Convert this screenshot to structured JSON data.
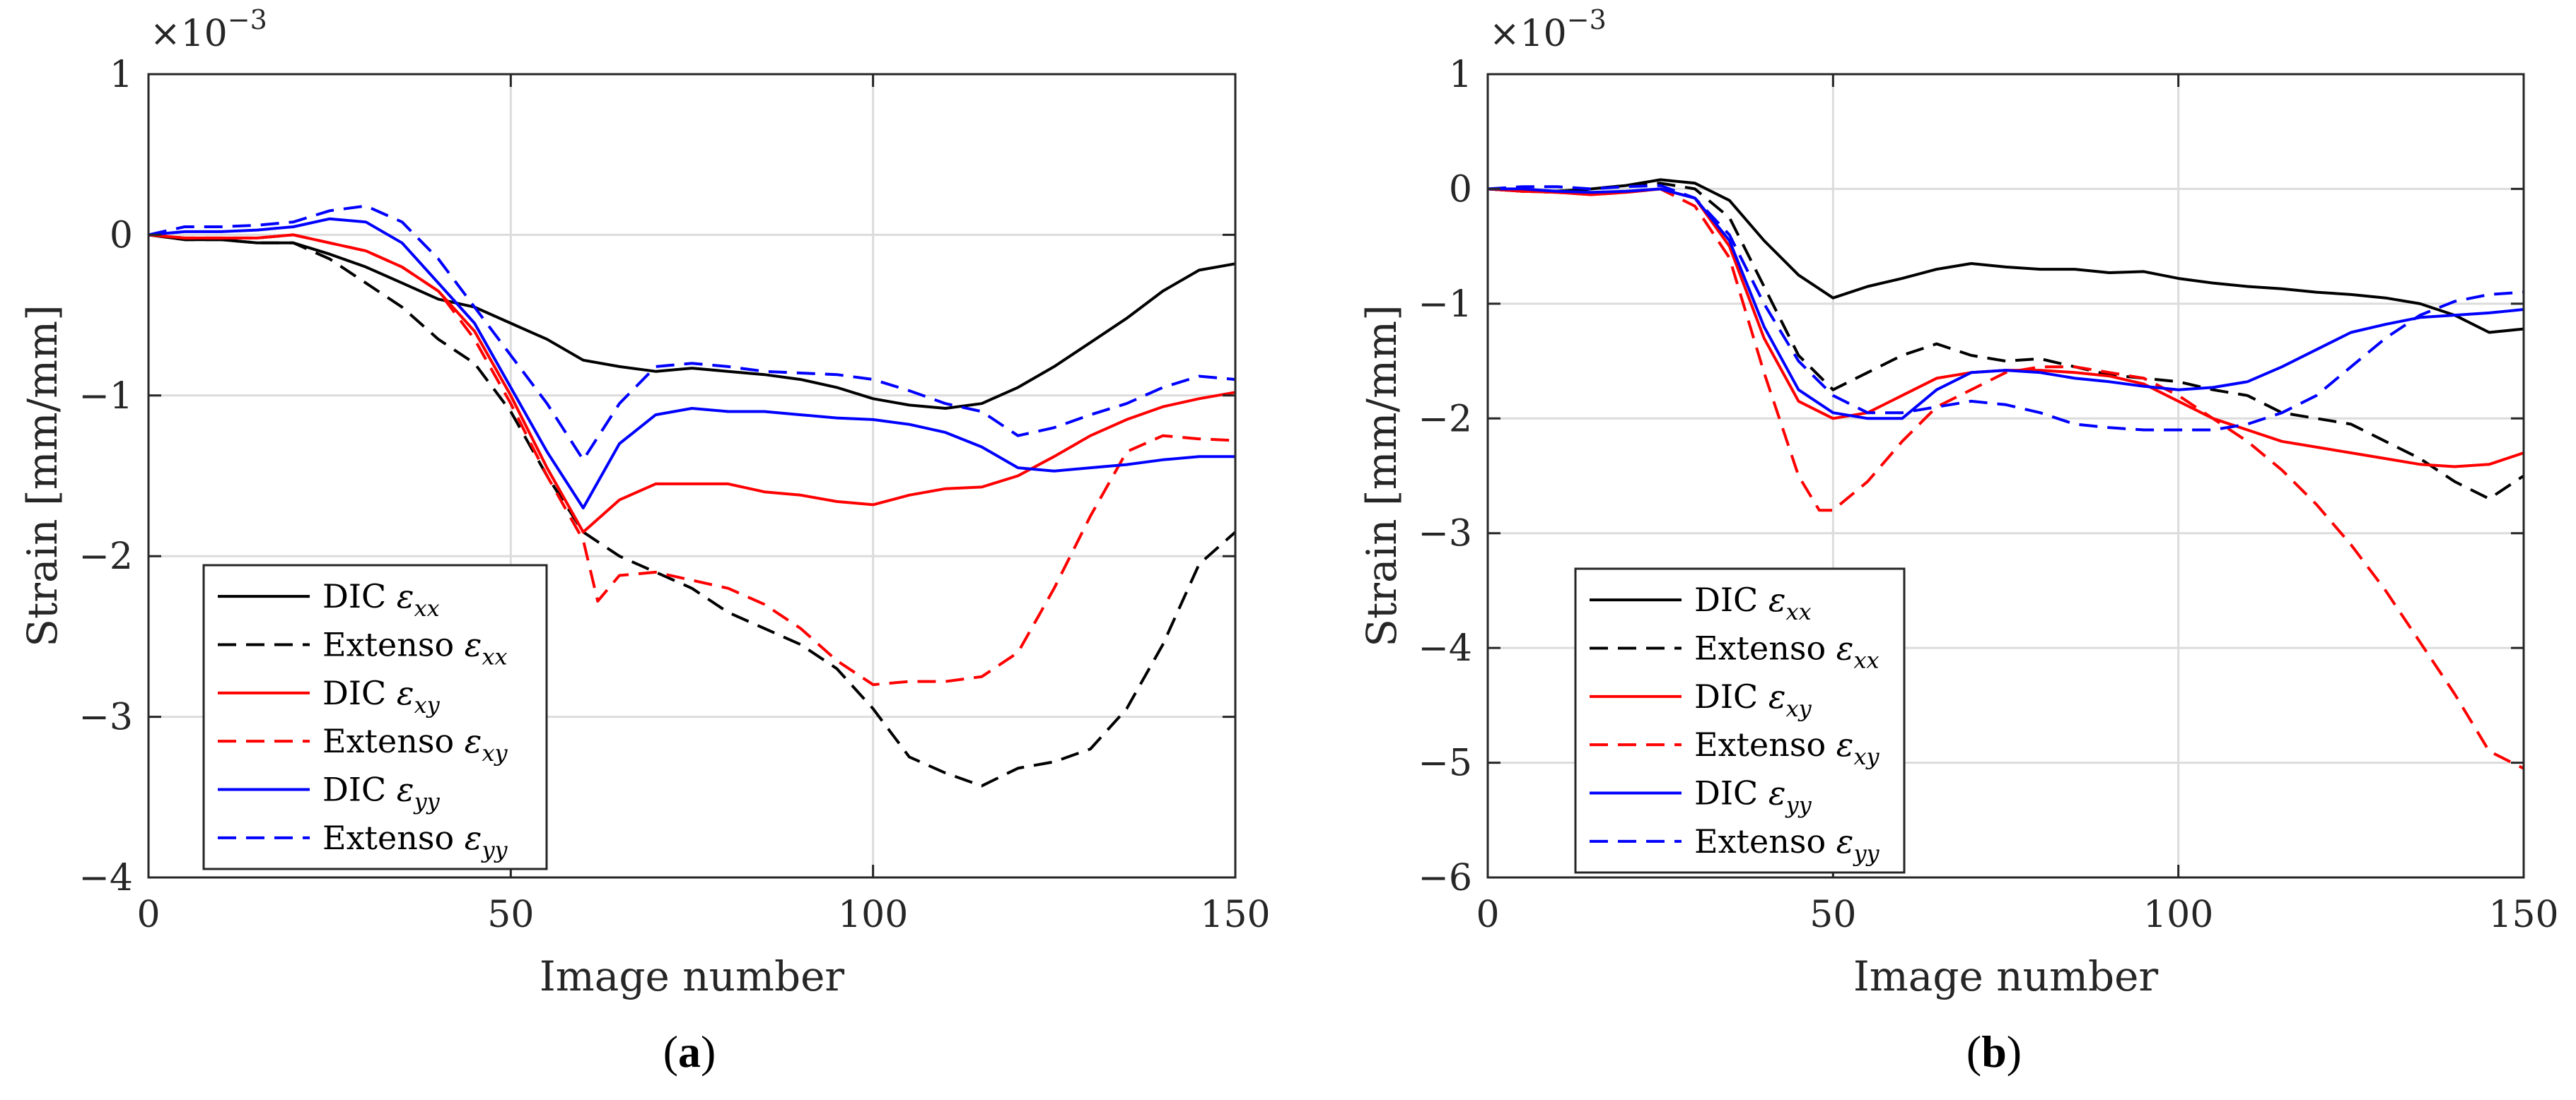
{
  "chart_data": [
    {
      "type": "line",
      "panel_label": "(a)",
      "xlabel": "Image number",
      "ylabel": "Strain [mm/mm]",
      "multiplier": "×10",
      "multiplier_exp": "−3",
      "xlim": [
        0,
        150
      ],
      "ylim": [
        -4,
        1
      ],
      "xticks": [
        0,
        50,
        100,
        150
      ],
      "yticks": [
        1,
        0,
        -1,
        -2,
        -3,
        -4
      ],
      "xtick_labels": [
        "0",
        "50",
        "100",
        "150"
      ],
      "ytick_labels": [
        "1",
        "0",
        "−1",
        "−2",
        "−3",
        "−4"
      ],
      "grid": true,
      "legend": "bottom-left",
      "series": [
        {
          "name": "DIC ε_xx",
          "label": "DIC",
          "sub": "xx",
          "color": "#000000",
          "dash": "solid",
          "x": [
            0,
            5,
            10,
            15,
            20,
            25,
            30,
            35,
            40,
            45,
            50,
            55,
            60,
            65,
            70,
            75,
            80,
            85,
            90,
            95,
            100,
            105,
            110,
            115,
            120,
            125,
            130,
            135,
            140,
            145,
            150
          ],
          "y": [
            0,
            -0.03,
            -0.03,
            -0.05,
            -0.05,
            -0.12,
            -0.2,
            -0.3,
            -0.4,
            -0.45,
            -0.55,
            -0.65,
            -0.78,
            -0.82,
            -0.85,
            -0.83,
            -0.85,
            -0.87,
            -0.9,
            -0.95,
            -1.02,
            -1.06,
            -1.08,
            -1.05,
            -0.95,
            -0.82,
            -0.67,
            -0.52,
            -0.35,
            -0.22,
            -0.18
          ]
        },
        {
          "name": "Extenso ε_xx",
          "label": "Extenso",
          "sub": "xx",
          "color": "#000000",
          "dash": "dashed",
          "x": [
            0,
            5,
            10,
            15,
            20,
            25,
            30,
            35,
            40,
            45,
            50,
            55,
            60,
            65,
            70,
            75,
            80,
            85,
            90,
            95,
            100,
            105,
            110,
            115,
            120,
            125,
            130,
            135,
            140,
            145,
            150
          ],
          "y": [
            0,
            -0.03,
            -0.03,
            -0.05,
            -0.05,
            -0.15,
            -0.3,
            -0.45,
            -0.65,
            -0.8,
            -1.1,
            -1.5,
            -1.85,
            -2.0,
            -2.1,
            -2.2,
            -2.35,
            -2.45,
            -2.55,
            -2.7,
            -2.95,
            -3.25,
            -3.35,
            -3.43,
            -3.32,
            -3.28,
            -3.2,
            -2.95,
            -2.55,
            -2.05,
            -1.85
          ]
        },
        {
          "name": "DIC ε_xy",
          "label": "DIC",
          "sub": "xy",
          "color": "#ff0000",
          "dash": "solid",
          "x": [
            0,
            5,
            10,
            15,
            20,
            25,
            30,
            35,
            40,
            45,
            50,
            55,
            60,
            65,
            70,
            75,
            80,
            85,
            90,
            95,
            100,
            105,
            110,
            115,
            120,
            125,
            130,
            135,
            140,
            145,
            150
          ],
          "y": [
            0,
            -0.02,
            -0.02,
            -0.02,
            0,
            -0.05,
            -0.1,
            -0.2,
            -0.35,
            -0.6,
            -1.0,
            -1.45,
            -1.85,
            -1.65,
            -1.55,
            -1.55,
            -1.55,
            -1.6,
            -1.62,
            -1.66,
            -1.68,
            -1.62,
            -1.58,
            -1.57,
            -1.5,
            -1.38,
            -1.25,
            -1.15,
            -1.07,
            -1.02,
            -0.98
          ]
        },
        {
          "name": "Extenso ε_xy",
          "label": "Extenso",
          "sub": "xy",
          "color": "#ff0000",
          "dash": "dashed",
          "x": [
            0,
            5,
            10,
            15,
            20,
            25,
            30,
            35,
            40,
            45,
            50,
            55,
            60,
            62,
            65,
            70,
            75,
            80,
            85,
            90,
            95,
            100,
            105,
            110,
            115,
            120,
            125,
            130,
            135,
            140,
            145,
            150
          ],
          "y": [
            0,
            -0.02,
            -0.02,
            -0.02,
            0,
            -0.05,
            -0.1,
            -0.2,
            -0.35,
            -0.65,
            -1.05,
            -1.5,
            -1.9,
            -2.28,
            -2.12,
            -2.1,
            -2.15,
            -2.2,
            -2.3,
            -2.45,
            -2.65,
            -2.8,
            -2.78,
            -2.78,
            -2.75,
            -2.6,
            -2.2,
            -1.75,
            -1.35,
            -1.25,
            -1.27,
            -1.28
          ]
        },
        {
          "name": "DIC ε_yy",
          "label": "DIC",
          "sub": "yy",
          "color": "#0000ff",
          "dash": "solid",
          "x": [
            0,
            5,
            10,
            15,
            20,
            25,
            30,
            35,
            40,
            45,
            50,
            55,
            60,
            65,
            70,
            75,
            80,
            85,
            90,
            95,
            100,
            105,
            110,
            115,
            120,
            125,
            130,
            135,
            140,
            145,
            150
          ],
          "y": [
            0,
            0.02,
            0.02,
            0.03,
            0.05,
            0.1,
            0.08,
            -0.05,
            -0.3,
            -0.55,
            -0.95,
            -1.35,
            -1.7,
            -1.3,
            -1.12,
            -1.08,
            -1.1,
            -1.1,
            -1.12,
            -1.14,
            -1.15,
            -1.18,
            -1.23,
            -1.32,
            -1.45,
            -1.47,
            -1.45,
            -1.43,
            -1.4,
            -1.38,
            -1.38
          ]
        },
        {
          "name": "Extenso ε_yy",
          "label": "Extenso",
          "sub": "yy",
          "color": "#0000ff",
          "dash": "dashed",
          "x": [
            0,
            5,
            10,
            15,
            20,
            25,
            30,
            35,
            40,
            45,
            50,
            55,
            60,
            65,
            70,
            75,
            80,
            85,
            90,
            95,
            100,
            105,
            110,
            115,
            120,
            125,
            130,
            135,
            140,
            145,
            150
          ],
          "y": [
            0,
            0.05,
            0.05,
            0.06,
            0.08,
            0.15,
            0.18,
            0.08,
            -0.15,
            -0.45,
            -0.75,
            -1.05,
            -1.4,
            -1.05,
            -0.82,
            -0.8,
            -0.82,
            -0.85,
            -0.86,
            -0.87,
            -0.9,
            -0.97,
            -1.05,
            -1.1,
            -1.25,
            -1.2,
            -1.12,
            -1.05,
            -0.95,
            -0.88,
            -0.9
          ]
        }
      ]
    },
    {
      "type": "line",
      "panel_label": "(b)",
      "xlabel": "Image number",
      "ylabel": "Strain [mm/mm]",
      "multiplier": "×10",
      "multiplier_exp": "−3",
      "xlim": [
        0,
        150
      ],
      "ylim": [
        -6,
        1
      ],
      "xticks": [
        0,
        50,
        100,
        150
      ],
      "yticks": [
        1,
        0,
        -1,
        -2,
        -3,
        -4,
        -5,
        -6
      ],
      "xtick_labels": [
        "0",
        "50",
        "100",
        "150"
      ],
      "ytick_labels": [
        "1",
        "0",
        "−1",
        "−2",
        "−3",
        "−4",
        "−5",
        "−6"
      ],
      "grid": true,
      "legend": "bottom-left",
      "series": [
        {
          "name": "DIC ε_xx",
          "label": "DIC",
          "sub": "xx",
          "color": "#000000",
          "dash": "solid",
          "x": [
            0,
            5,
            10,
            15,
            20,
            25,
            30,
            35,
            40,
            45,
            50,
            55,
            60,
            65,
            70,
            75,
            80,
            85,
            90,
            95,
            100,
            105,
            110,
            115,
            120,
            125,
            130,
            135,
            140,
            145,
            150
          ],
          "y": [
            0,
            -0.02,
            -0.02,
            0,
            0.03,
            0.08,
            0.05,
            -0.1,
            -0.45,
            -0.75,
            -0.95,
            -0.85,
            -0.78,
            -0.7,
            -0.65,
            -0.68,
            -0.7,
            -0.7,
            -0.73,
            -0.72,
            -0.78,
            -0.82,
            -0.85,
            -0.87,
            -0.9,
            -0.92,
            -0.95,
            -1.0,
            -1.1,
            -1.25,
            -1.22
          ]
        },
        {
          "name": "Extenso ε_xx",
          "label": "Extenso",
          "sub": "xx",
          "color": "#000000",
          "dash": "dashed",
          "x": [
            0,
            5,
            10,
            15,
            20,
            25,
            30,
            35,
            40,
            45,
            50,
            55,
            60,
            65,
            70,
            75,
            80,
            85,
            90,
            95,
            100,
            105,
            110,
            115,
            120,
            125,
            130,
            135,
            140,
            145,
            150
          ],
          "y": [
            0,
            -0.02,
            -0.02,
            0,
            0.03,
            0.05,
            0,
            -0.25,
            -0.85,
            -1.45,
            -1.75,
            -1.6,
            -1.45,
            -1.35,
            -1.45,
            -1.5,
            -1.48,
            -1.55,
            -1.62,
            -1.65,
            -1.68,
            -1.75,
            -1.8,
            -1.95,
            -2.0,
            -2.05,
            -2.2,
            -2.35,
            -2.55,
            -2.7,
            -2.5
          ]
        },
        {
          "name": "DIC ε_xy",
          "label": "DIC",
          "sub": "xy",
          "color": "#ff0000",
          "dash": "solid",
          "x": [
            0,
            5,
            10,
            15,
            20,
            25,
            30,
            35,
            40,
            45,
            50,
            55,
            60,
            65,
            70,
            75,
            80,
            85,
            90,
            95,
            100,
            105,
            110,
            115,
            120,
            125,
            130,
            135,
            140,
            145,
            150
          ],
          "y": [
            0,
            -0.02,
            -0.03,
            -0.05,
            -0.03,
            0,
            -0.08,
            -0.5,
            -1.3,
            -1.85,
            -2.0,
            -1.95,
            -1.8,
            -1.65,
            -1.6,
            -1.58,
            -1.58,
            -1.6,
            -1.63,
            -1.7,
            -1.85,
            -2.0,
            -2.1,
            -2.2,
            -2.25,
            -2.3,
            -2.35,
            -2.4,
            -2.42,
            -2.4,
            -2.3
          ]
        },
        {
          "name": "Extenso ε_xy",
          "label": "Extenso",
          "sub": "xy",
          "color": "#ff0000",
          "dash": "dashed",
          "x": [
            0,
            5,
            10,
            15,
            20,
            25,
            30,
            35,
            40,
            45,
            48,
            50,
            55,
            60,
            65,
            70,
            75,
            80,
            85,
            90,
            95,
            100,
            105,
            110,
            115,
            120,
            125,
            130,
            135,
            140,
            145,
            150
          ],
          "y": [
            0,
            -0.02,
            -0.03,
            -0.05,
            -0.03,
            0,
            -0.15,
            -0.6,
            -1.6,
            -2.5,
            -2.8,
            -2.8,
            -2.55,
            -2.2,
            -1.9,
            -1.75,
            -1.6,
            -1.55,
            -1.55,
            -1.6,
            -1.65,
            -1.8,
            -2.0,
            -2.2,
            -2.45,
            -2.75,
            -3.1,
            -3.5,
            -3.95,
            -4.4,
            -4.9,
            -5.05
          ]
        },
        {
          "name": "DIC ε_yy",
          "label": "DIC",
          "sub": "yy",
          "color": "#0000ff",
          "dash": "solid",
          "x": [
            0,
            5,
            10,
            15,
            20,
            25,
            30,
            35,
            40,
            45,
            50,
            55,
            60,
            65,
            70,
            75,
            80,
            85,
            90,
            95,
            100,
            105,
            110,
            115,
            120,
            125,
            130,
            135,
            140,
            145,
            150
          ],
          "y": [
            0,
            0,
            -0.02,
            -0.03,
            -0.02,
            0,
            -0.08,
            -0.45,
            -1.2,
            -1.75,
            -1.95,
            -2.0,
            -2.0,
            -1.75,
            -1.6,
            -1.58,
            -1.6,
            -1.65,
            -1.68,
            -1.72,
            -1.75,
            -1.73,
            -1.68,
            -1.55,
            -1.4,
            -1.25,
            -1.18,
            -1.12,
            -1.1,
            -1.08,
            -1.05
          ]
        },
        {
          "name": "Extenso ε_yy",
          "label": "Extenso",
          "sub": "yy",
          "color": "#0000ff",
          "dash": "dashed",
          "x": [
            0,
            5,
            10,
            15,
            20,
            25,
            30,
            35,
            40,
            45,
            50,
            55,
            60,
            65,
            70,
            75,
            80,
            85,
            90,
            95,
            100,
            105,
            110,
            115,
            120,
            125,
            130,
            135,
            140,
            145,
            150
          ],
          "y": [
            0,
            0.02,
            0.02,
            0,
            0.02,
            0.03,
            -0.08,
            -0.4,
            -1.0,
            -1.5,
            -1.8,
            -1.95,
            -1.95,
            -1.9,
            -1.85,
            -1.88,
            -1.95,
            -2.05,
            -2.08,
            -2.1,
            -2.1,
            -2.1,
            -2.05,
            -1.95,
            -1.8,
            -1.55,
            -1.3,
            -1.1,
            -0.98,
            -0.92,
            -0.9
          ]
        }
      ]
    }
  ]
}
